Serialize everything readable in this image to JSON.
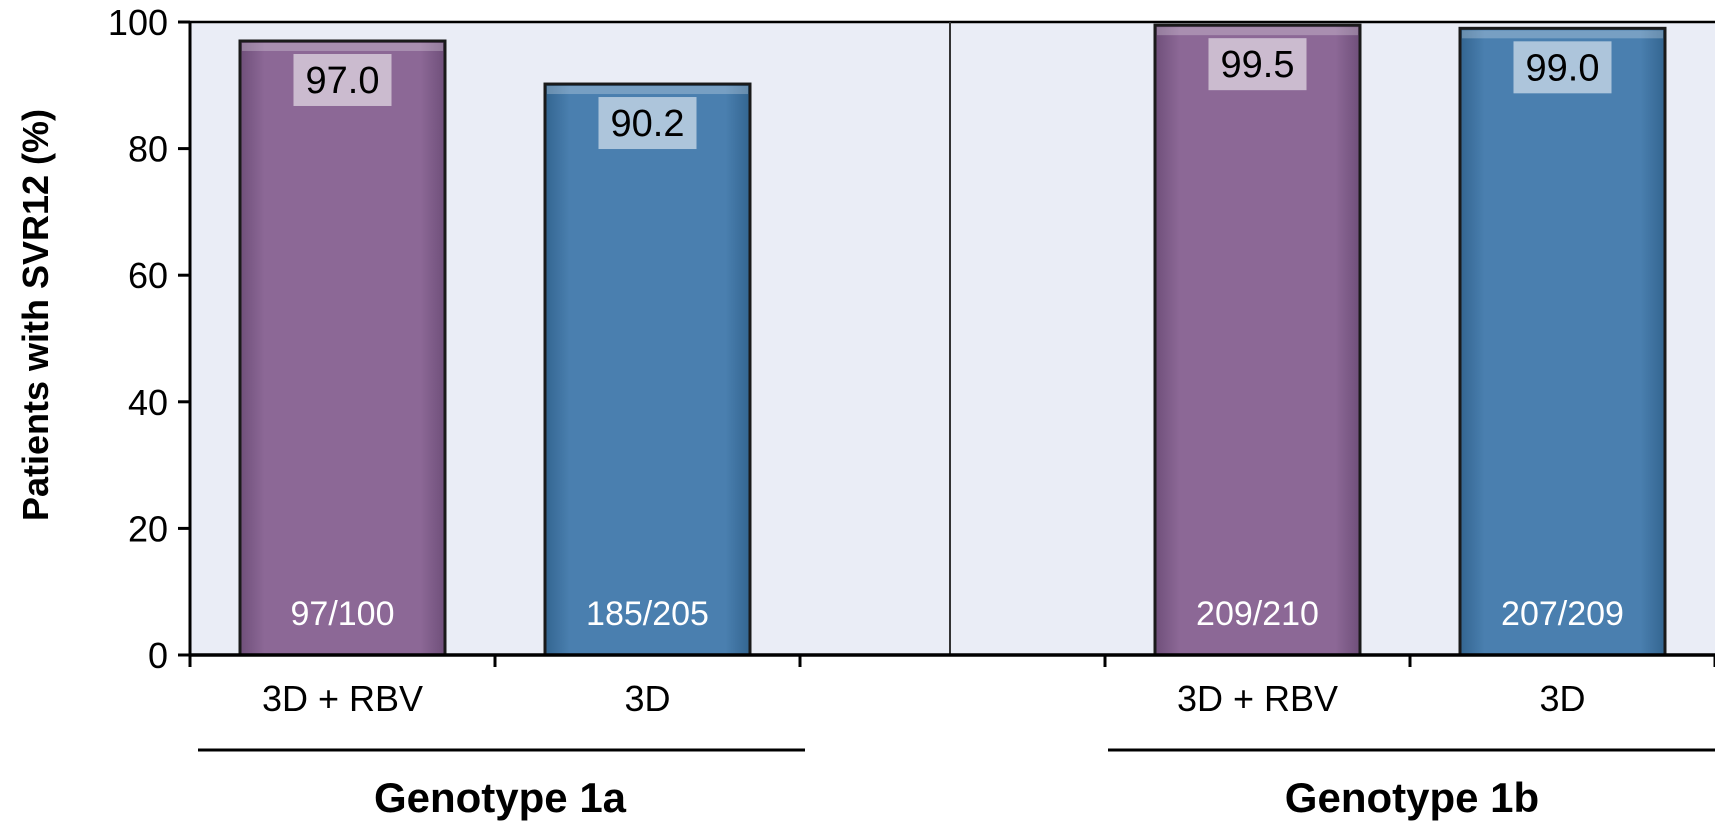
{
  "chart_data": {
    "type": "bar",
    "title": "",
    "ylabel": "Patients with SVR12 (%)",
    "xlabel": "",
    "ylim": [
      0,
      100
    ],
    "yticks": [
      0,
      20,
      40,
      60,
      80,
      100
    ],
    "grid": false,
    "groups": [
      {
        "name": "Genotype 1a",
        "bars": [
          {
            "category": "3D + RBV",
            "value": 97.0,
            "value_label": "97.0",
            "count_label": "97/100",
            "color": "#8C6896"
          },
          {
            "category": "3D",
            "value": 90.2,
            "value_label": "90.2",
            "count_label": "185/205",
            "color": "#4A7FAF"
          }
        ]
      },
      {
        "name": "Genotype 1b",
        "bars": [
          {
            "category": "3D + RBV",
            "value": 99.5,
            "value_label": "99.5",
            "count_label": "209/210",
            "color": "#8C6896"
          },
          {
            "category": "3D",
            "value": 99.0,
            "value_label": "99.0",
            "count_label": "207/209",
            "color": "#4A7FAF"
          }
        ]
      }
    ],
    "colors": {
      "plot_background": "#EAEDF6",
      "rbv_bar": "#8C6896",
      "mono_bar": "#4A7FAF",
      "axis": "#000000"
    }
  }
}
